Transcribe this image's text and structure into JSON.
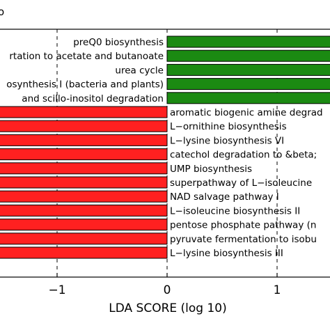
{
  "top_fragment": "o",
  "colors": {
    "group_a": "#1b8a12",
    "group_b": "#ff2020"
  },
  "chart_data": {
    "type": "bar",
    "orientation": "horizontal",
    "xlabel": "LDA SCORE (log 10)",
    "xticks": [
      "−1",
      "0",
      "1"
    ],
    "xlim": [
      -1.5,
      1.5
    ],
    "grid": "dashed vertical at ticks",
    "categories": [
      "preQ0 biosynthesis",
      "rtation to acetate and butanoate",
      "urea cycle",
      "osynthesis I (bacteria and plants)",
      "and scillo-inositol degradation",
      "aromatic biogenic amine degrad",
      "L−ornithine biosynthesis",
      "L−lysine biosynthesis VI",
      "catechol degradation to &beta;",
      "UMP biosynthesis",
      "superpathway of L−isoleucine",
      "NAD salvage pathway I",
      "L−isoleucine biosynthesis II",
      "pentose phosphate pathway (n",
      "pyruvate fermentation to isobu",
      "L−lysine biosynthesis III"
    ],
    "values": [
      2.6,
      2.6,
      2.6,
      2.6,
      2.6,
      -2.6,
      -2.6,
      -2.6,
      -2.6,
      -2.6,
      -2.6,
      -2.6,
      -2.6,
      -2.6,
      -2.6,
      -2.6
    ]
  }
}
